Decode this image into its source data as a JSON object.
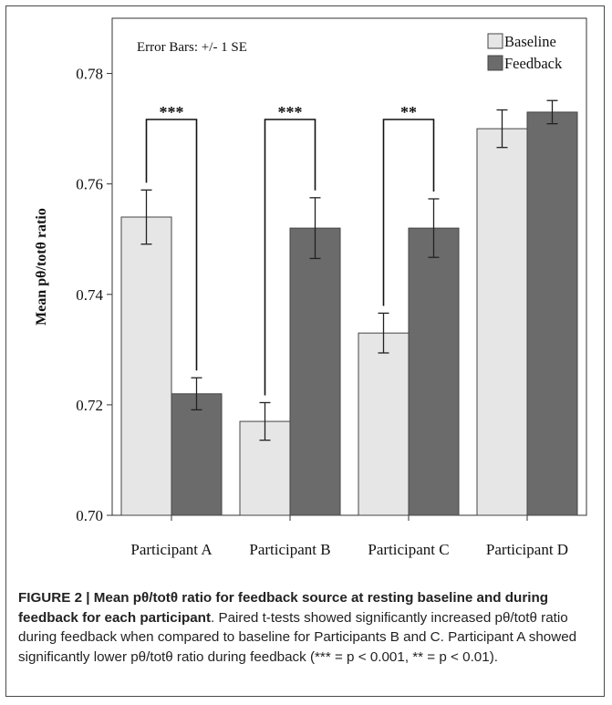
{
  "chart_data": {
    "type": "bar",
    "title": "",
    "xlabel": "",
    "ylabel": "Mean pθ/totθ ratio",
    "ylim": [
      0.7,
      0.79
    ],
    "yticks": [
      "0.70",
      "0.72",
      "0.74",
      "0.76",
      "0.78"
    ],
    "ytick_values": [
      0.7,
      0.72,
      0.74,
      0.76,
      0.78
    ],
    "categories": [
      "Participant A",
      "Participant B",
      "Participant C",
      "Participant D"
    ],
    "series": [
      {
        "name": "Baseline",
        "color": "#e6e6e6",
        "values": [
          0.754,
          0.717,
          0.733,
          0.77
        ],
        "se": [
          0.0049,
          0.0034,
          0.0036,
          0.0034
        ]
      },
      {
        "name": "Feedback",
        "color": "#6b6b6b",
        "values": [
          0.722,
          0.752,
          0.752,
          0.773
        ],
        "se": [
          0.0029,
          0.0055,
          0.0053,
          0.0021
        ]
      }
    ],
    "annotation": "Error Bars: +/- 1 SE",
    "legend": "top-right",
    "significance": [
      {
        "category": 0,
        "label": "***"
      },
      {
        "category": 1,
        "label": "***"
      },
      {
        "category": 2,
        "label": "**"
      }
    ],
    "grid": false
  },
  "caption": {
    "head": "FIGURE 2 | Mean pθ/totθ ratio for feedback source at resting baseline and during feedback for each participant",
    "body": ". Paired t-tests showed significantly increased pθ/totθ ratio during feedback when compared to baseline for Participants B and C. Participant A showed significantly lower pθ/totθ ratio during feedback (*** = p < 0.001, ** = p < 0.01)."
  }
}
